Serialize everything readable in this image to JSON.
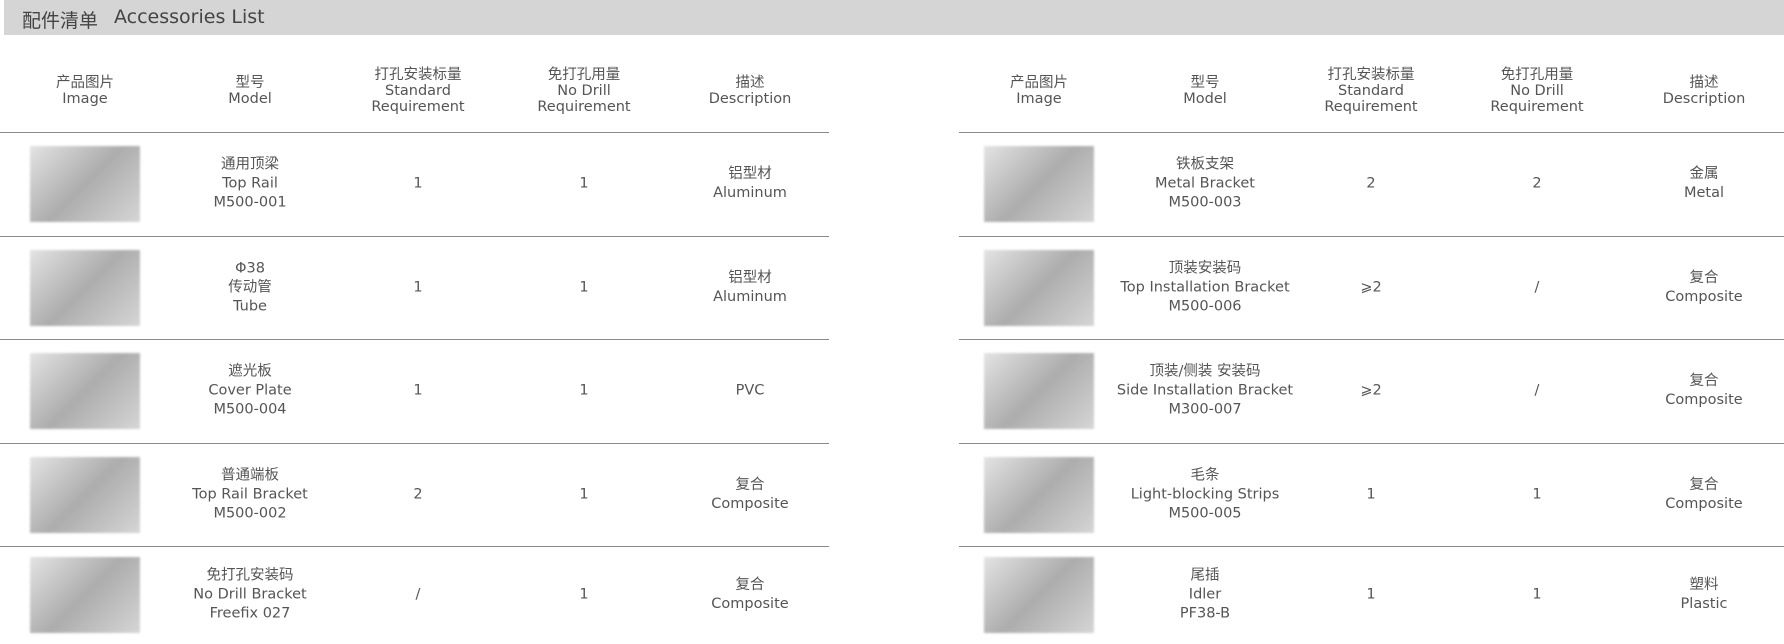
{
  "header": {
    "title_cn": "配件清单",
    "title_en": "Accessories List"
  },
  "tables": [
    {
      "columns": [
        [
          "产品图片",
          "Image"
        ],
        [
          "型号",
          "Model"
        ],
        [
          "打孔安装标量",
          "Standard",
          "Requirement"
        ],
        [
          "免打孔用量",
          "No Drill",
          "Requirement"
        ],
        [
          "描述",
          "Description"
        ]
      ],
      "rows": [
        {
          "model": [
            "通用顶梁",
            "Top Rail",
            "M500-001"
          ],
          "standard": "1",
          "no_drill": "1",
          "description": [
            "铝型材",
            "Aluminum"
          ]
        },
        {
          "model": [
            "Φ38",
            "传动管",
            "Tube"
          ],
          "standard": "1",
          "no_drill": "1",
          "description": [
            "铝型材",
            "Aluminum"
          ]
        },
        {
          "model": [
            "遮光板",
            "Cover Plate",
            "M500-004"
          ],
          "standard": "1",
          "no_drill": "1",
          "description": [
            "PVC"
          ]
        },
        {
          "model": [
            "普通端板",
            "Top Rail Bracket",
            "M500-002"
          ],
          "standard": "2",
          "no_drill": "1",
          "description": [
            "复合",
            "Composite"
          ]
        },
        {
          "model": [
            "免打孔安装码",
            "No Drill Bracket",
            "Freefix 027"
          ],
          "standard": "/",
          "no_drill": "1",
          "description": [
            "复合",
            "Composite"
          ]
        }
      ]
    },
    {
      "columns": [
        [
          "产品图片",
          "Image"
        ],
        [
          "型号",
          "Model"
        ],
        [
          "打孔安装标量",
          "Standard",
          "Requirement"
        ],
        [
          "免打孔用量",
          "No Drill",
          "Requirement"
        ],
        [
          "描述",
          "Description"
        ]
      ],
      "rows": [
        {
          "model": [
            "铁板支架",
            "Metal Bracket",
            "M500-003"
          ],
          "standard": "2",
          "no_drill": "2",
          "description": [
            "金属",
            "Metal"
          ]
        },
        {
          "model": [
            "顶装安装码",
            "Top Installation Bracket",
            "M500-006"
          ],
          "standard": "⩾2",
          "no_drill": "/",
          "description": [
            "复合",
            "Composite"
          ]
        },
        {
          "model": [
            "顶装/侧装 安装码",
            "Side Installation Bracket",
            "M300-007"
          ],
          "standard": "⩾2",
          "no_drill": "/",
          "description": [
            "复合",
            "Composite"
          ]
        },
        {
          "model": [
            "毛条",
            "Light-blocking Strips",
            "M500-005"
          ],
          "standard": "1",
          "no_drill": "1",
          "description": [
            "复合",
            "Composite"
          ]
        },
        {
          "model": [
            "尾插",
            "Idler",
            "PF38-B"
          ],
          "standard": "1",
          "no_drill": "1",
          "description": [
            "塑料",
            "Plastic"
          ]
        }
      ]
    }
  ]
}
